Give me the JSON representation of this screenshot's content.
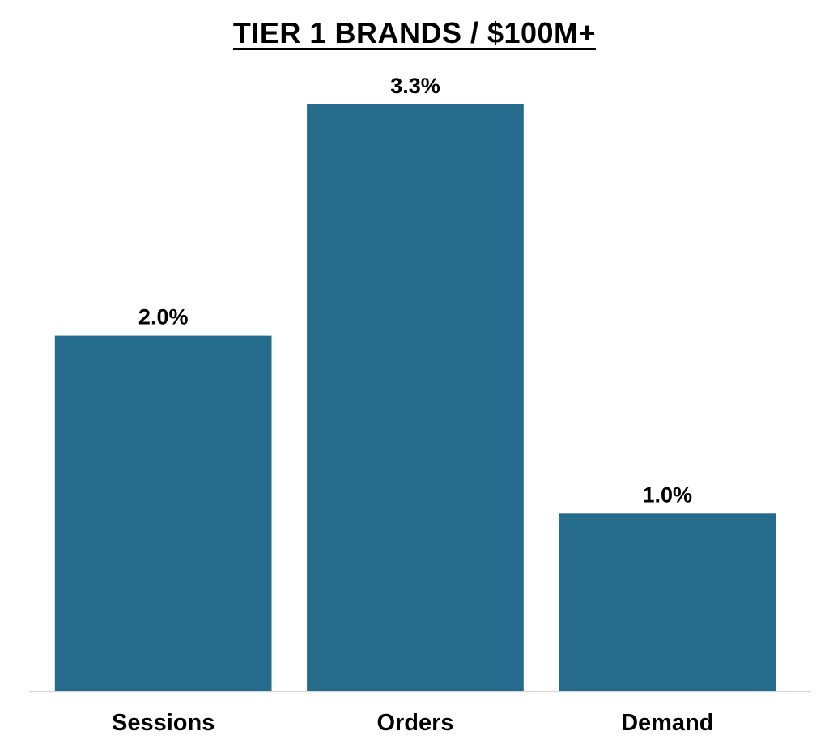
{
  "chart_data": {
    "type": "bar",
    "title": "TIER 1 BRANDS / $100M+",
    "categories": [
      "Sessions",
      "Orders",
      "Demand"
    ],
    "values": [
      2.0,
      3.3,
      1.0
    ],
    "data_labels": [
      "2.0%",
      "3.3%",
      "1.0%"
    ],
    "value_unit": "%",
    "ylim": [
      0,
      3.3
    ],
    "xlabel": "",
    "ylabel": "",
    "grid": false,
    "legend": "none",
    "bar_color": "#246b8c",
    "axis_color": "#d9d9d9"
  }
}
